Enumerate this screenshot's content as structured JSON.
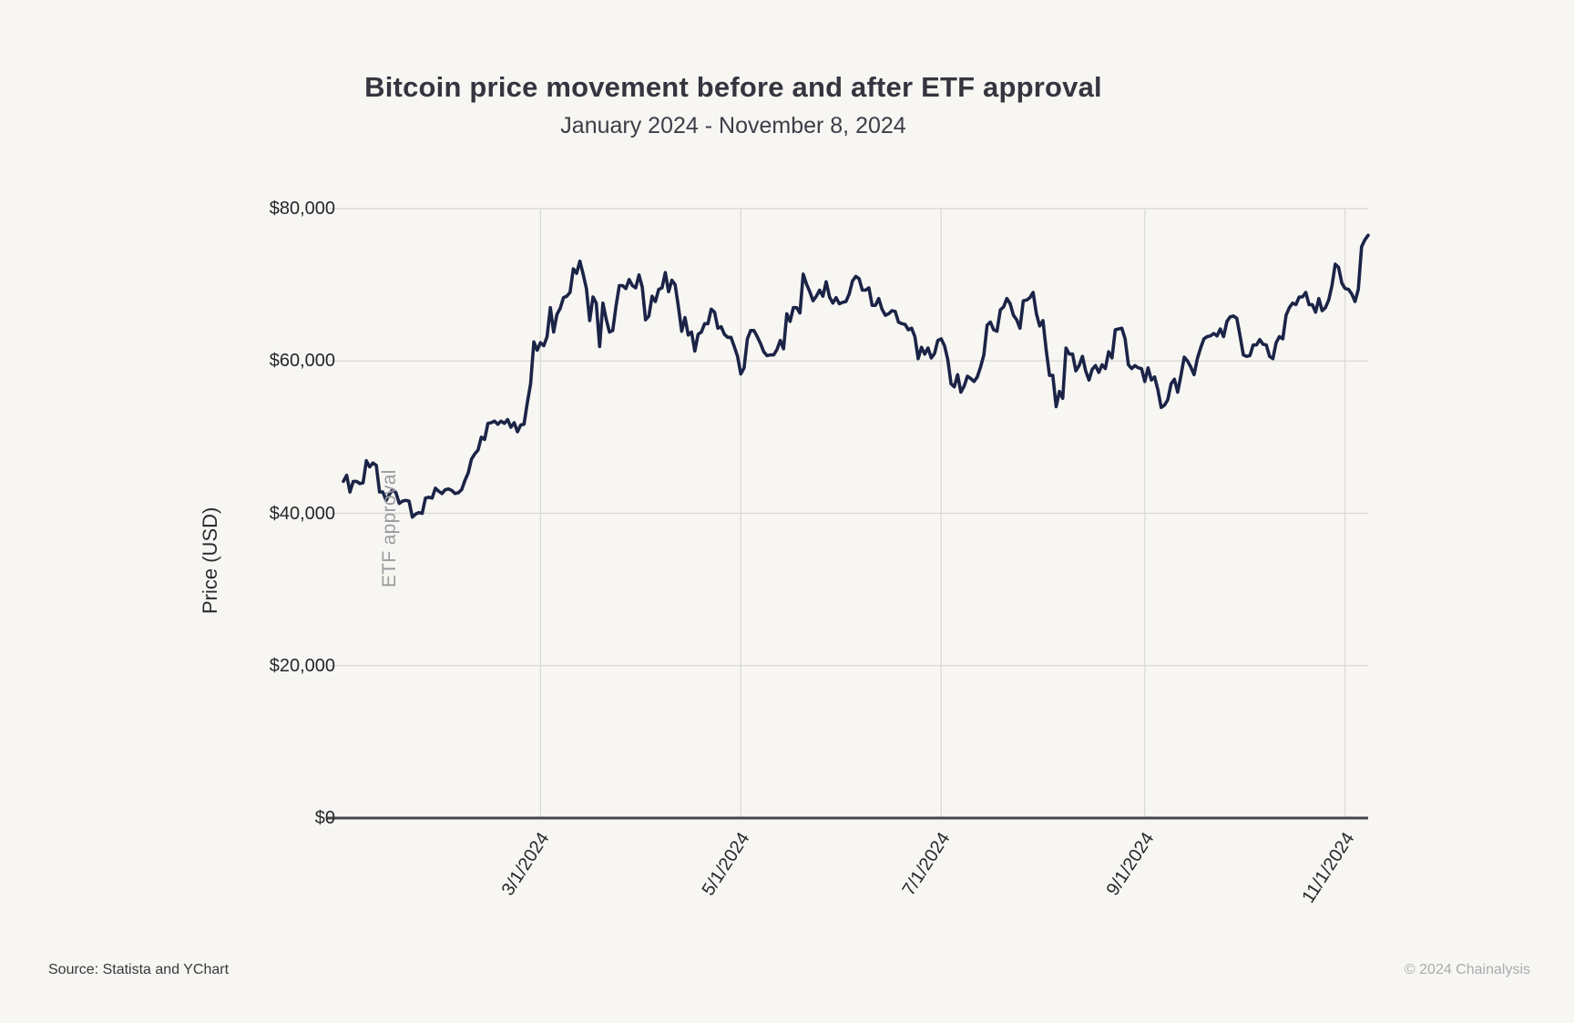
{
  "page": {
    "source_note": "Source: Statista and YChart",
    "copyright": "© 2024 Chainalysis",
    "background_color": "#f7f6f3"
  },
  "chart_data": {
    "type": "line",
    "title": "Bitcoin price movement before and after ETF approval",
    "subtitle": "January 2024 - November 8, 2024",
    "xlabel": "",
    "ylabel": "Price (USD)",
    "x_start_date": "2024-01-01",
    "x_end_date": "2024-11-08",
    "frequency": "daily",
    "ylim": [
      0,
      80000
    ],
    "grid": true,
    "legend": "none",
    "line_color": "#1b2447",
    "gridline_color": "#d8d7d3",
    "axis_line_color": "#47474b",
    "y_ticks": [
      {
        "label": "$0",
        "value": 0
      },
      {
        "label": "$20,000",
        "value": 20000
      },
      {
        "label": "$40,000",
        "value": 40000
      },
      {
        "label": "$60,000",
        "value": 60000
      },
      {
        "label": "$80,000",
        "value": 80000
      }
    ],
    "x_ticks": [
      {
        "label": "3/1/2024",
        "day_offset": 60
      },
      {
        "label": "5/1/2024",
        "day_offset": 121
      },
      {
        "label": "7/1/2024",
        "day_offset": 182
      },
      {
        "label": "9/1/2024",
        "day_offset": 244
      },
      {
        "label": "11/1/2024",
        "day_offset": 305
      }
    ],
    "annotation": {
      "text": "ETF approval",
      "date": "2024-01-11",
      "day_offset": 10
    },
    "series": [
      {
        "name": "Bitcoin price (USD)",
        "values": [
          44200,
          45000,
          42800,
          44200,
          44200,
          43900,
          44000,
          46900,
          46100,
          46600,
          46300,
          42800,
          42800,
          41700,
          42500,
          43100,
          42700,
          41300,
          41600,
          41700,
          41600,
          39500,
          39900,
          40100,
          40000,
          42000,
          42100,
          42000,
          43300,
          42900,
          42600,
          43100,
          43200,
          43000,
          42600,
          42700,
          43100,
          44300,
          45300,
          47100,
          47800,
          48300,
          50000,
          49700,
          51800,
          51900,
          52100,
          51700,
          52100,
          51800,
          52300,
          51300,
          51900,
          50700,
          51600,
          51700,
          54500,
          57000,
          62500,
          61400,
          62400,
          62000,
          63200,
          67000,
          63800,
          66100,
          66900,
          68300,
          68500,
          69000,
          72100,
          71500,
          73100,
          71400,
          69500,
          65300,
          68400,
          67600,
          61900,
          67600,
          65500,
          63800,
          64000,
          67200,
          69900,
          69900,
          69500,
          70700,
          69900,
          69600,
          71300,
          69700,
          65400,
          65900,
          68500,
          67800,
          69400,
          69600,
          71600,
          69100,
          70600,
          70000,
          67100,
          63900,
          65700,
          63400,
          63800,
          61300,
          63500,
          63800,
          64900,
          64900,
          66800,
          66400,
          64300,
          64500,
          63500,
          63100,
          63100,
          61900,
          60600,
          58300,
          59100,
          62900,
          64000,
          64000,
          63200,
          62300,
          61200,
          60700,
          60800,
          60800,
          61500,
          62700,
          61600,
          66200,
          65200,
          67000,
          67000,
          66300,
          71400,
          70100,
          69100,
          67900,
          68500,
          69300,
          68500,
          70400,
          68400,
          67600,
          68300,
          67500,
          67700,
          67800,
          68800,
          70500,
          71100,
          70800,
          69300,
          69300,
          69600,
          67300,
          67300,
          68200,
          66800,
          66000,
          66200,
          66600,
          66500,
          65100,
          64900,
          64800,
          64100,
          64300,
          63200,
          60300,
          61800,
          60900,
          61700,
          60400,
          61000,
          62700,
          62900,
          62000,
          60200,
          57000,
          56600,
          58200,
          55900,
          56700,
          58000,
          57700,
          57300,
          57900,
          59200,
          60800,
          64700,
          65100,
          64100,
          63900,
          66700,
          67100,
          68200,
          67500,
          66000,
          65400,
          64300,
          67900,
          68000,
          68300,
          69000,
          66200,
          64600,
          65300,
          61400,
          58100,
          58100,
          54000,
          56000,
          55100,
          61700,
          60900,
          60900,
          58700,
          59400,
          60600,
          58700,
          57500,
          58900,
          59400,
          58500,
          59500,
          59000,
          61200,
          60400,
          64100,
          64200,
          64300,
          62900,
          59500,
          59000,
          59400,
          59100,
          59000,
          57300,
          59100,
          57500,
          57900,
          56200,
          53900,
          54200,
          54900,
          57000,
          57600,
          55900,
          58100,
          60500,
          60000,
          59200,
          58200,
          60300,
          61700,
          62900,
          63200,
          63300,
          63600,
          63300,
          64200,
          63200,
          65200,
          65800,
          65900,
          65600,
          63300,
          60800,
          60600,
          60700,
          62100,
          62100,
          62800,
          62200,
          62100,
          60600,
          60300,
          62400,
          63200,
          62900,
          66000,
          67000,
          67600,
          67400,
          68400,
          68400,
          69000,
          67400,
          67400,
          66400,
          68200,
          66600,
          67000,
          68000,
          69900,
          72700,
          72300,
          70200,
          69500,
          69400,
          68800,
          67800,
          69400,
          75000,
          75900,
          76500
        ]
      }
    ]
  }
}
